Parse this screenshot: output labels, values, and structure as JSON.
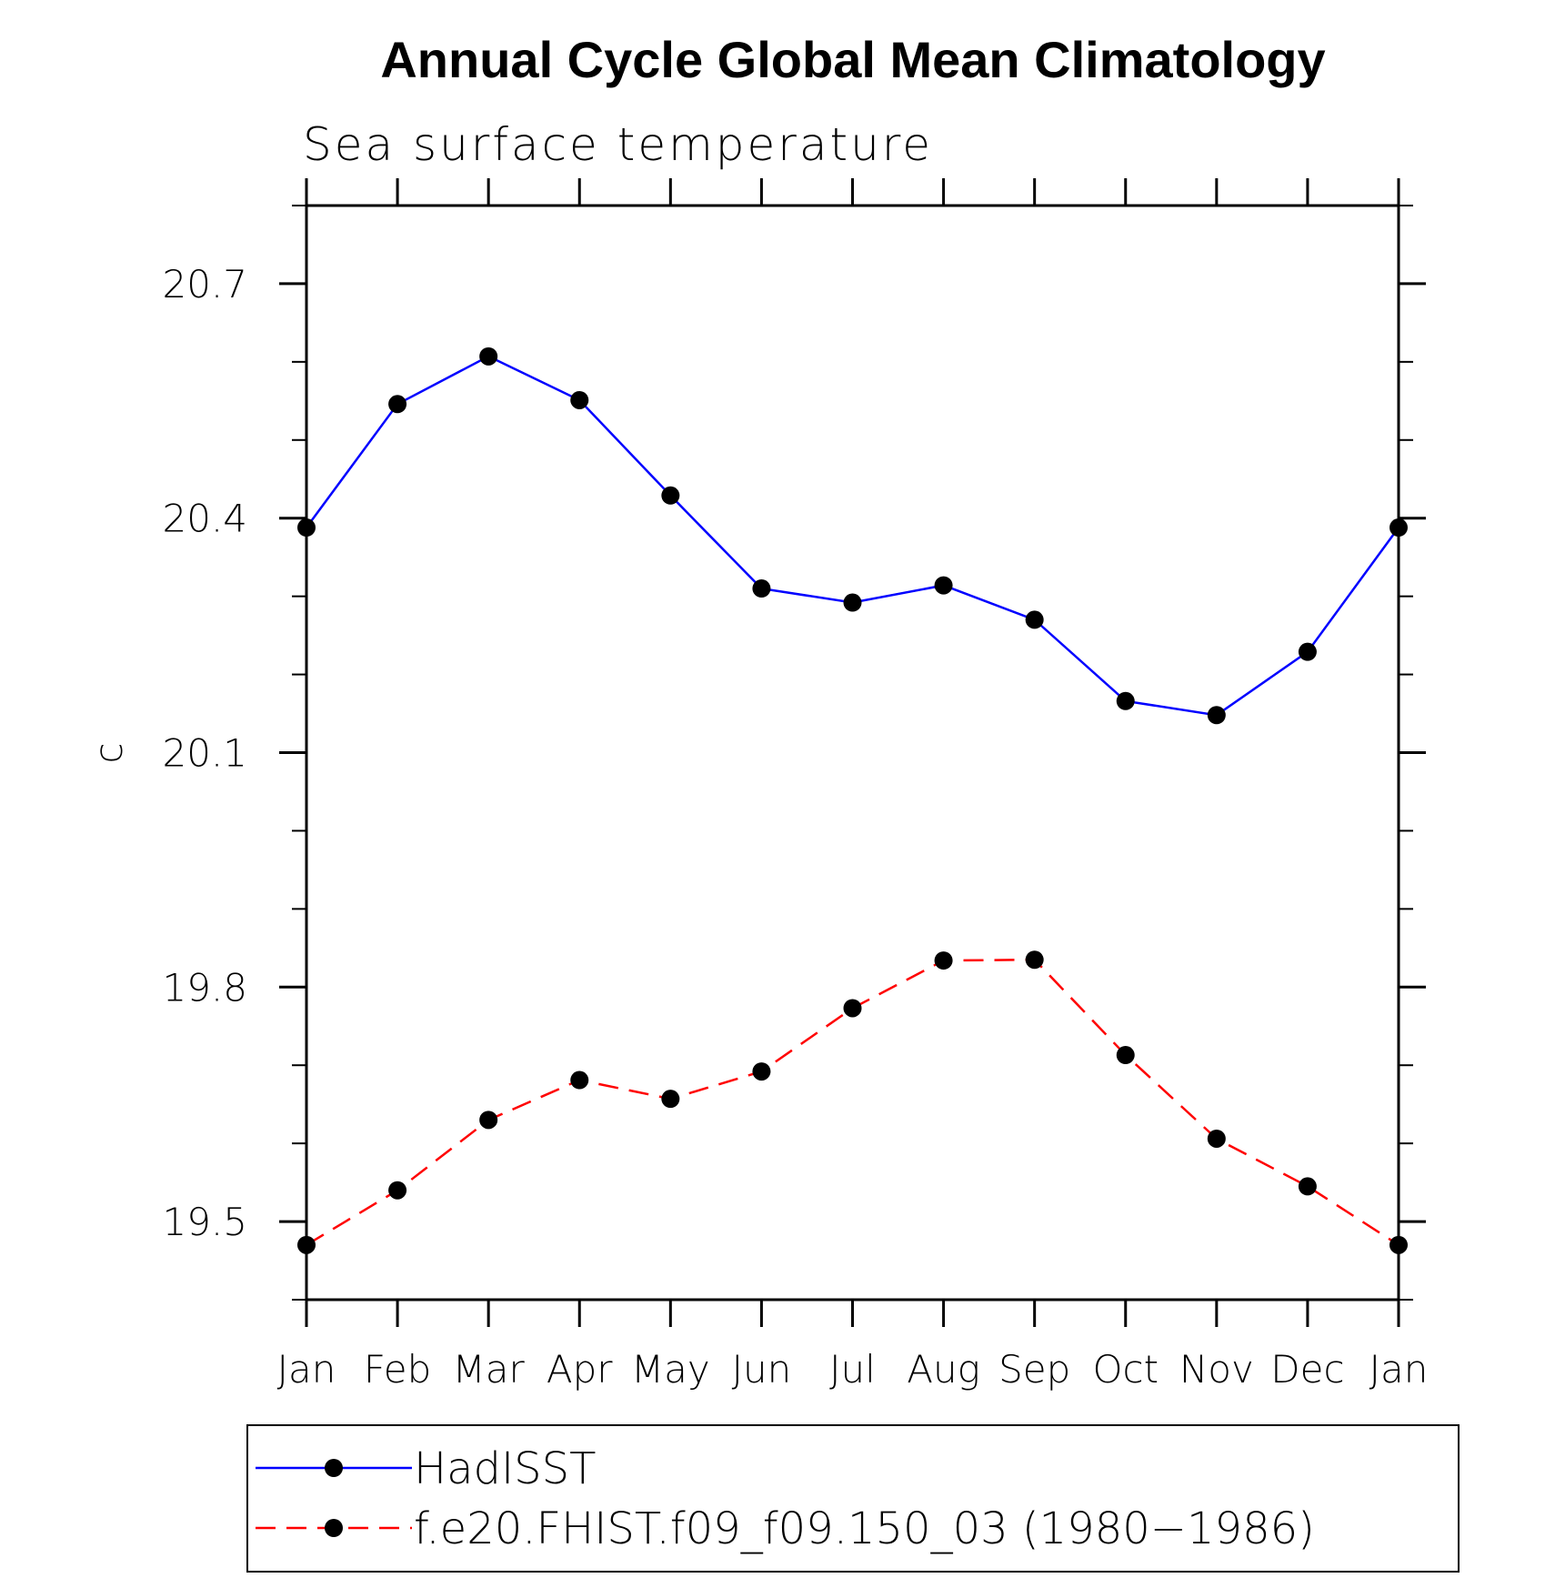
{
  "chart_data": {
    "type": "line",
    "title": "Annual Cycle Global Mean Climatology",
    "subtitle": "Sea surface temperature",
    "xlabel": "",
    "ylabel": "c",
    "categories": [
      "Jan",
      "Feb",
      "Mar",
      "Apr",
      "May",
      "Jun",
      "Jul",
      "Aug",
      "Sep",
      "Oct",
      "Nov",
      "Dec",
      "Jan"
    ],
    "ylim": [
      19.4,
      20.8
    ],
    "yticks": [
      19.5,
      19.8,
      20.1,
      20.4,
      20.7
    ],
    "ytick_labels": [
      "19.5",
      "19.8",
      "20.1",
      "20.4",
      "20.7"
    ],
    "y_minor_step": 0.1,
    "grid": false,
    "legend_placement": "bottom",
    "series": [
      {
        "name": "HadISST",
        "color": "#0000ff",
        "line_style": "solid",
        "marker": "filled-circle",
        "marker_color": "#000000",
        "values": [
          20.388,
          20.546,
          20.607,
          20.551,
          20.429,
          20.31,
          20.292,
          20.314,
          20.27,
          20.166,
          20.148,
          20.229,
          20.388
        ]
      },
      {
        "name": "f.e20.FHIST.f09_f09.150_03 (1980−1986)",
        "color": "#ff0000",
        "line_style": "dashed",
        "marker": "filled-circle",
        "marker_color": "#000000",
        "values": [
          19.47,
          19.54,
          19.63,
          19.681,
          19.657,
          19.692,
          19.773,
          19.834,
          19.835,
          19.713,
          19.606,
          19.545,
          19.47
        ]
      }
    ]
  }
}
